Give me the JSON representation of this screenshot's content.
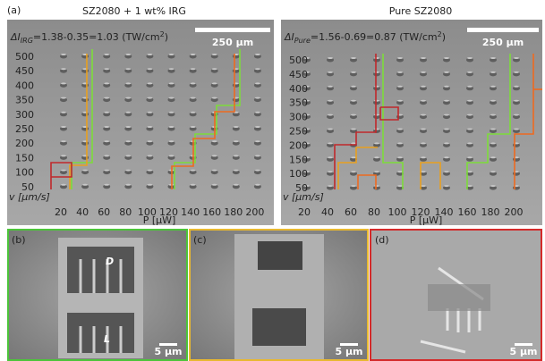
{
  "panel_a": {
    "label": "(a)",
    "left": {
      "title": "SZ2080 + 1 wt% IRG",
      "delta": {
        "symbol": "ΔI",
        "subscript": "IRG",
        "expression": "=1.38-0.35=1.03 (TW/cm",
        "superscript": "2",
        "close": ")"
      },
      "scale_bar": "250 µm",
      "y_ticks": [
        "500",
        "450",
        "400",
        "350",
        "300",
        "250",
        "200",
        "150",
        "100",
        "50"
      ],
      "x_ticks": [
        "20",
        "40",
        "60",
        "80",
        "100",
        "120",
        "140",
        "160",
        "180",
        "200"
      ],
      "y_axis_label": "v [µm/s]",
      "x_axis_label": "P [µW]"
    },
    "right": {
      "title": "Pure SZ2080",
      "delta": {
        "symbol": "ΔI",
        "subscript": "Pure",
        "expression": "=1.56-0.69=0.87 (TW/cm",
        "superscript": "2",
        "close": ")"
      },
      "scale_bar": "250 µm",
      "y_ticks": [
        "500",
        "450",
        "400",
        "350",
        "300",
        "250",
        "200",
        "150",
        "100",
        "50"
      ],
      "x_ticks": [
        "20",
        "40",
        "60",
        "80",
        "100",
        "120",
        "140",
        "160",
        "180",
        "200"
      ],
      "y_axis_label": "v [µm/s]",
      "x_axis_label": "P [µW]"
    }
  },
  "panel_b": {
    "label": "(b)",
    "dimension_d": "D",
    "dimension_l": "L",
    "scale_bar": "5 µm"
  },
  "panel_c": {
    "label": "(c)",
    "scale_bar": "5 µm"
  },
  "panel_d": {
    "label": "(d)",
    "scale_bar": "5 µm"
  }
}
